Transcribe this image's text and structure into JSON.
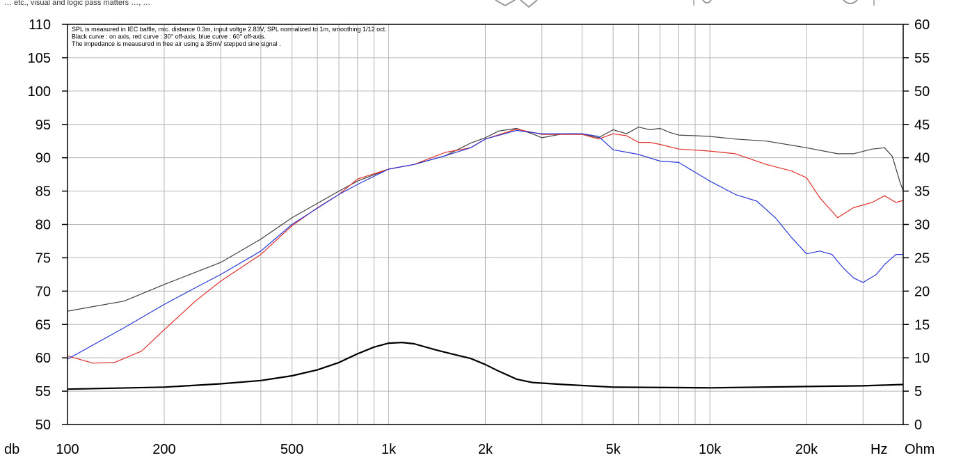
{
  "chart_data": {
    "type": "line",
    "x_scale": "log",
    "xlim": [
      100,
      40000
    ],
    "ylim_left": [
      50,
      110
    ],
    "ylim_right": [
      0,
      60
    ],
    "grid": true,
    "xlabel": "Hz",
    "ylabel_left": "db",
    "ylabel_right": "Ohm",
    "top_strip_text": "… etc., visual and logic pass matters …, …",
    "notes": [
      "SPL is measured in IEC baffle, mic. distance 0.3m, input voltge 2.83V, SPL normalized to 1m, smoothing 1/12 oct.",
      "Black curve : on axis, red curve : 30° off-axis, blue curve : 60° off-axis.",
      "The impedance is meausured in free air using a 35mV stepped sine signal ."
    ],
    "x_ticks": [
      {
        "value": 100,
        "label": "100"
      },
      {
        "value": 200,
        "label": "200"
      },
      {
        "value": 500,
        "label": "500"
      },
      {
        "value": 1000,
        "label": "1k"
      },
      {
        "value": 2000,
        "label": "2k"
      },
      {
        "value": 5000,
        "label": "5k"
      },
      {
        "value": 10000,
        "label": "10k"
      },
      {
        "value": 20000,
        "label": "20k"
      }
    ],
    "y_ticks_left": [
      110,
      105,
      100,
      95,
      90,
      85,
      80,
      75,
      70,
      65,
      60,
      55,
      50
    ],
    "y_ticks_right": [
      60,
      55,
      50,
      45,
      40,
      35,
      30,
      25,
      20,
      15,
      10,
      5,
      0
    ],
    "series": [
      {
        "axis": "left",
        "color": "#404040",
        "points": [
          [
            100,
            67
          ],
          [
            150,
            68.5
          ],
          [
            200,
            71
          ],
          [
            300,
            74.3
          ],
          [
            400,
            77.8
          ],
          [
            500,
            81
          ],
          [
            700,
            85
          ],
          [
            800,
            86.5
          ],
          [
            1000,
            88.3
          ],
          [
            1200,
            89
          ],
          [
            1500,
            90.3
          ],
          [
            1800,
            92.2
          ],
          [
            2000,
            93
          ],
          [
            2200,
            94
          ],
          [
            2500,
            94.4
          ],
          [
            2800,
            93.6
          ],
          [
            3000,
            93
          ],
          [
            3500,
            93.6
          ],
          [
            4000,
            93.6
          ],
          [
            4500,
            93
          ],
          [
            5000,
            94.2
          ],
          [
            5500,
            93.6
          ],
          [
            6000,
            94.6
          ],
          [
            6500,
            94.2
          ],
          [
            7000,
            94.4
          ],
          [
            7500,
            93.8
          ],
          [
            8000,
            93.4
          ],
          [
            9000,
            93.3
          ],
          [
            10000,
            93.2
          ],
          [
            12000,
            92.8
          ],
          [
            15000,
            92.5
          ],
          [
            20000,
            91.5
          ],
          [
            25000,
            90.6
          ],
          [
            28000,
            90.6
          ],
          [
            32000,
            91.3
          ],
          [
            35000,
            91.5
          ],
          [
            37000,
            90.2
          ],
          [
            39000,
            86.5
          ],
          [
            40000,
            85
          ]
        ]
      },
      {
        "axis": "left",
        "color": "#e0302a",
        "points": [
          [
            100,
            60.3
          ],
          [
            120,
            59.2
          ],
          [
            140,
            59.3
          ],
          [
            170,
            61
          ],
          [
            200,
            64.2
          ],
          [
            250,
            68.5
          ],
          [
            300,
            71.5
          ],
          [
            400,
            75.5
          ],
          [
            500,
            79.8
          ],
          [
            600,
            82.5
          ],
          [
            700,
            84.5
          ],
          [
            800,
            86.8
          ],
          [
            1000,
            88.3
          ],
          [
            1200,
            89
          ],
          [
            1500,
            90.8
          ],
          [
            1800,
            91.5
          ],
          [
            2000,
            92.8
          ],
          [
            2500,
            94.3
          ],
          [
            3000,
            93.5
          ],
          [
            3500,
            93.5
          ],
          [
            4000,
            93.5
          ],
          [
            4500,
            92.8
          ],
          [
            5000,
            93.6
          ],
          [
            5500,
            93.3
          ],
          [
            6000,
            92.3
          ],
          [
            6500,
            92.3
          ],
          [
            7000,
            92
          ],
          [
            8000,
            91.3
          ],
          [
            10000,
            91
          ],
          [
            12000,
            90.6
          ],
          [
            15000,
            89
          ],
          [
            18000,
            88
          ],
          [
            20000,
            87
          ],
          [
            22000,
            84
          ],
          [
            25000,
            81
          ],
          [
            28000,
            82.5
          ],
          [
            32000,
            83.3
          ],
          [
            35000,
            84.3
          ],
          [
            38000,
            83.3
          ],
          [
            40000,
            83.6
          ]
        ]
      },
      {
        "axis": "left",
        "color": "#2a38d8",
        "points": [
          [
            100,
            59.8
          ],
          [
            150,
            64.5
          ],
          [
            200,
            68
          ],
          [
            250,
            70.5
          ],
          [
            300,
            72.5
          ],
          [
            400,
            76
          ],
          [
            500,
            80
          ],
          [
            700,
            84.5
          ],
          [
            800,
            86
          ],
          [
            1000,
            88.3
          ],
          [
            1200,
            89
          ],
          [
            1500,
            90.3
          ],
          [
            1800,
            91.5
          ],
          [
            2000,
            92.8
          ],
          [
            2500,
            94.1
          ],
          [
            3000,
            93.6
          ],
          [
            3500,
            93.6
          ],
          [
            4000,
            93.6
          ],
          [
            4500,
            93.2
          ],
          [
            5000,
            91.2
          ],
          [
            6000,
            90.5
          ],
          [
            7000,
            89.5
          ],
          [
            8000,
            89.3
          ],
          [
            10000,
            86.5
          ],
          [
            12000,
            84.5
          ],
          [
            14000,
            83.5
          ],
          [
            16000,
            81
          ],
          [
            18000,
            78
          ],
          [
            20000,
            75.6
          ],
          [
            22000,
            76
          ],
          [
            24000,
            75.5
          ],
          [
            26000,
            73.5
          ],
          [
            28000,
            72
          ],
          [
            30000,
            71.3
          ],
          [
            33000,
            72.5
          ],
          [
            35000,
            74
          ],
          [
            38000,
            75.5
          ],
          [
            40000,
            75.5
          ]
        ]
      },
      {
        "axis": "right",
        "color": "#000000",
        "points": [
          [
            100,
            5.3
          ],
          [
            200,
            5.6
          ],
          [
            300,
            6.1
          ],
          [
            400,
            6.6
          ],
          [
            500,
            7.3
          ],
          [
            600,
            8.2
          ],
          [
            700,
            9.3
          ],
          [
            800,
            10.6
          ],
          [
            900,
            11.6
          ],
          [
            1000,
            12.2
          ],
          [
            1100,
            12.3
          ],
          [
            1200,
            12.1
          ],
          [
            1400,
            11.2
          ],
          [
            1600,
            10.5
          ],
          [
            1800,
            9.9
          ],
          [
            2000,
            9
          ],
          [
            2200,
            8
          ],
          [
            2500,
            6.8
          ],
          [
            2800,
            6.3
          ],
          [
            3500,
            6
          ],
          [
            5000,
            5.6
          ],
          [
            10000,
            5.5
          ],
          [
            20000,
            5.7
          ],
          [
            30000,
            5.8
          ],
          [
            40000,
            6
          ]
        ]
      }
    ]
  }
}
